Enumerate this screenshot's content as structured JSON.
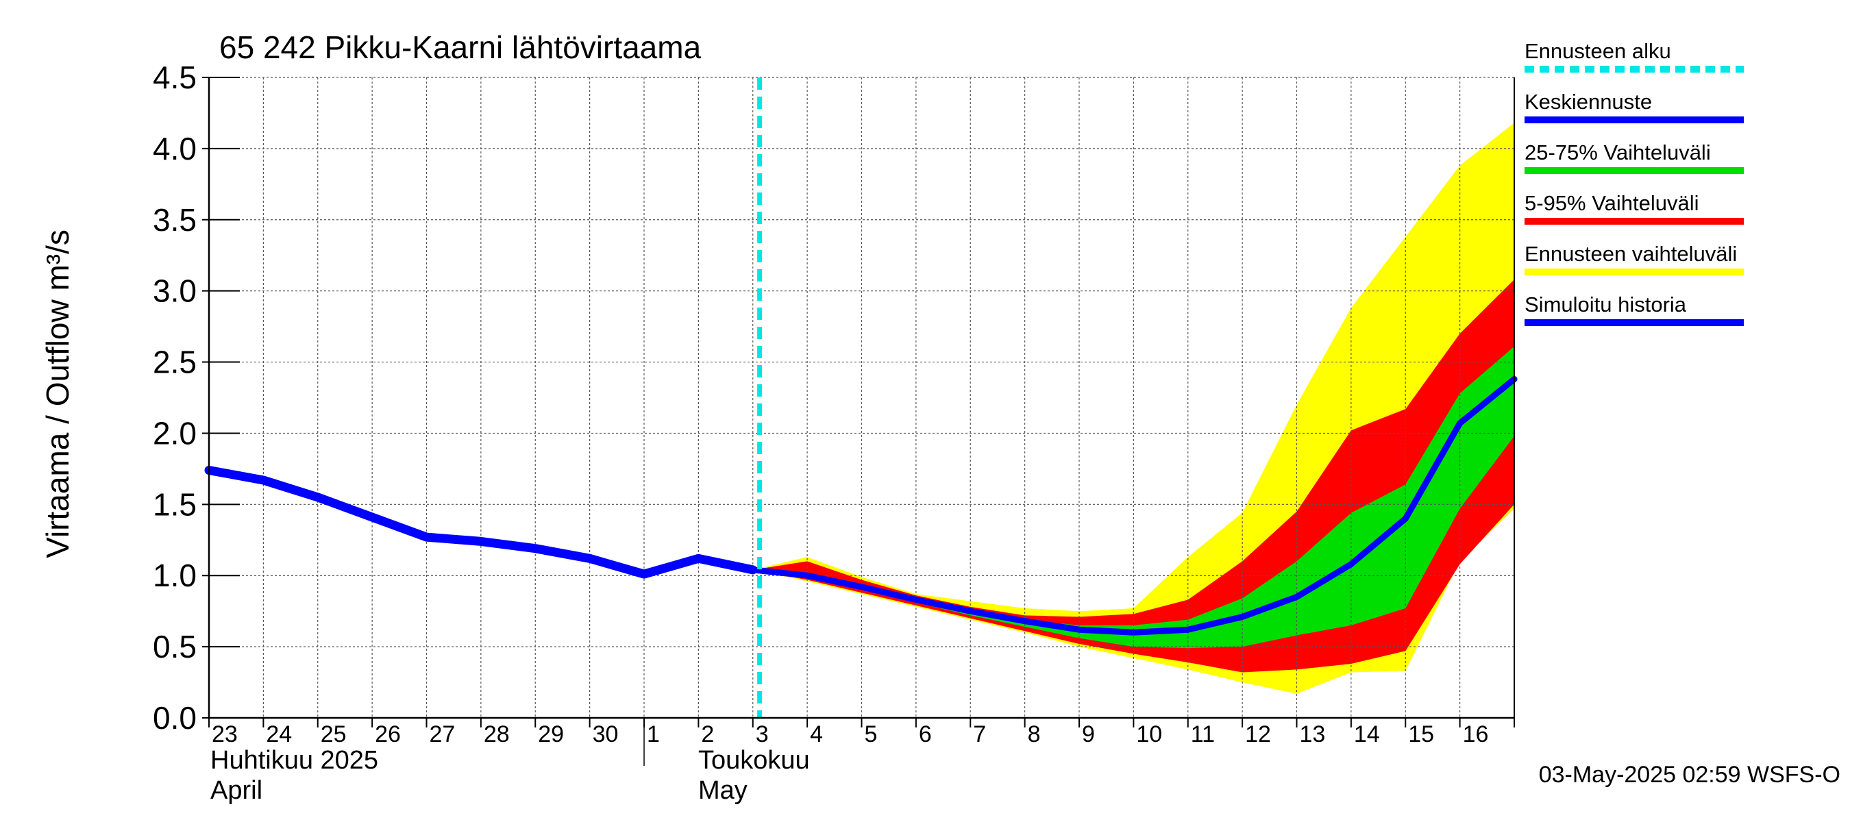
{
  "chart_data": {
    "type": "area",
    "title": "65 242 Pikku-Kaarni lähtövirtaama",
    "ylabel": "Virtaama / Outflow    m³/s",
    "ylim": [
      0,
      4.5
    ],
    "y_ticks": [
      "0.0",
      "0.5",
      "1.0",
      "1.5",
      "2.0",
      "2.5",
      "3.0",
      "3.5",
      "4.0",
      "4.5"
    ],
    "xlim": [
      "2025-04-23",
      "2025-05-17"
    ],
    "x_tick_labels": [
      "23",
      "24",
      "25",
      "26",
      "27",
      "28",
      "29",
      "30",
      "1",
      "2",
      "3",
      "4",
      "5",
      "6",
      "7",
      "8",
      "9",
      "10",
      "11",
      "12",
      "13",
      "14",
      "15",
      "16"
    ],
    "month_labels": [
      {
        "fi": "Huhtikuu  2025",
        "en": "April"
      },
      {
        "fi": "Toukokuu",
        "en": "May"
      }
    ],
    "forecast_start": "2025-05-03T02:59",
    "footer": "03-May-2025 02:59 WSFS-O",
    "grid": true,
    "legend_position": "right",
    "legend": [
      {
        "label": "Ennusteen alku",
        "color": "#00e5e5",
        "style": "dashed"
      },
      {
        "label": "Keskiennuste",
        "color": "#0000ff",
        "style": "solid"
      },
      {
        "label": "25-75% Vaihteluväli",
        "color": "#00dd00",
        "style": "solid"
      },
      {
        "label": "5-95% Vaihteluväli",
        "color": "#ff0000",
        "style": "solid"
      },
      {
        "label": "Ennusteen vaihteluväli",
        "color": "#ffff00",
        "style": "solid"
      },
      {
        "label": "Simuloitu historia",
        "color": "#0000ff",
        "style": "solid"
      }
    ],
    "series": [
      {
        "name": "Simuloitu historia",
        "color": "#0000ff",
        "x": [
          "2025-04-23",
          "2025-04-24",
          "2025-04-25",
          "2025-04-26",
          "2025-04-27",
          "2025-04-28",
          "2025-04-29",
          "2025-04-30",
          "2025-05-01",
          "2025-05-02",
          "2025-05-03"
        ],
        "y": [
          1.74,
          1.67,
          1.55,
          1.41,
          1.27,
          1.24,
          1.19,
          1.12,
          1.01,
          1.12,
          1.04
        ]
      },
      {
        "name": "Keskiennuste",
        "color": "#0000ff",
        "x": [
          "2025-05-03",
          "2025-05-04",
          "2025-05-05",
          "2025-05-06",
          "2025-05-07",
          "2025-05-08",
          "2025-05-09",
          "2025-05-10",
          "2025-05-11",
          "2025-05-12",
          "2025-05-13",
          "2025-05-14",
          "2025-05-15",
          "2025-05-16",
          "2025-05-17"
        ],
        "y": [
          1.04,
          1.0,
          0.92,
          0.83,
          0.75,
          0.68,
          0.62,
          0.6,
          0.62,
          0.71,
          0.85,
          1.08,
          1.4,
          2.07,
          2.38
        ]
      }
    ],
    "bands": [
      {
        "name": "Ennusteen vaihteluväli",
        "color": "#ffff00",
        "x": [
          "2025-05-03",
          "2025-05-04",
          "2025-05-05",
          "2025-05-06",
          "2025-05-07",
          "2025-05-08",
          "2025-05-09",
          "2025-05-10",
          "2025-05-11",
          "2025-05-12",
          "2025-05-13",
          "2025-05-14",
          "2025-05-15",
          "2025-05-16",
          "2025-05-17"
        ],
        "lower": [
          1.04,
          0.96,
          0.87,
          0.78,
          0.69,
          0.6,
          0.5,
          0.42,
          0.34,
          0.25,
          0.17,
          0.32,
          0.33,
          1.1,
          1.47
        ],
        "upper": [
          1.04,
          1.13,
          0.99,
          0.87,
          0.82,
          0.77,
          0.75,
          0.77,
          1.13,
          1.44,
          2.2,
          2.88,
          3.38,
          3.88,
          4.18
        ]
      },
      {
        "name": "5-95% Vaihteluväli",
        "color": "#ff0000",
        "x": [
          "2025-05-03",
          "2025-05-04",
          "2025-05-05",
          "2025-05-06",
          "2025-05-07",
          "2025-05-08",
          "2025-05-09",
          "2025-05-10",
          "2025-05-11",
          "2025-05-12",
          "2025-05-13",
          "2025-05-14",
          "2025-05-15",
          "2025-05-16",
          "2025-05-17"
        ],
        "lower": [
          1.04,
          0.97,
          0.88,
          0.79,
          0.7,
          0.61,
          0.52,
          0.45,
          0.39,
          0.32,
          0.34,
          0.38,
          0.47,
          1.08,
          1.5
        ],
        "upper": [
          1.04,
          1.1,
          0.97,
          0.86,
          0.78,
          0.72,
          0.71,
          0.73,
          0.83,
          1.1,
          1.45,
          2.02,
          2.17,
          2.7,
          3.08
        ]
      },
      {
        "name": "25-75% Vaihteluväli",
        "color": "#00dd00",
        "x": [
          "2025-05-03",
          "2025-05-04",
          "2025-05-05",
          "2025-05-06",
          "2025-05-07",
          "2025-05-08",
          "2025-05-09",
          "2025-05-10",
          "2025-05-11",
          "2025-05-12",
          "2025-05-13",
          "2025-05-14",
          "2025-05-15",
          "2025-05-16",
          "2025-05-17"
        ],
        "lower": [
          1.04,
          0.98,
          0.9,
          0.81,
          0.72,
          0.64,
          0.56,
          0.5,
          0.49,
          0.5,
          0.58,
          0.65,
          0.77,
          1.47,
          1.98
        ],
        "upper": [
          1.04,
          1.02,
          0.94,
          0.84,
          0.76,
          0.69,
          0.65,
          0.65,
          0.69,
          0.84,
          1.1,
          1.44,
          1.64,
          2.28,
          2.61
        ]
      }
    ]
  }
}
